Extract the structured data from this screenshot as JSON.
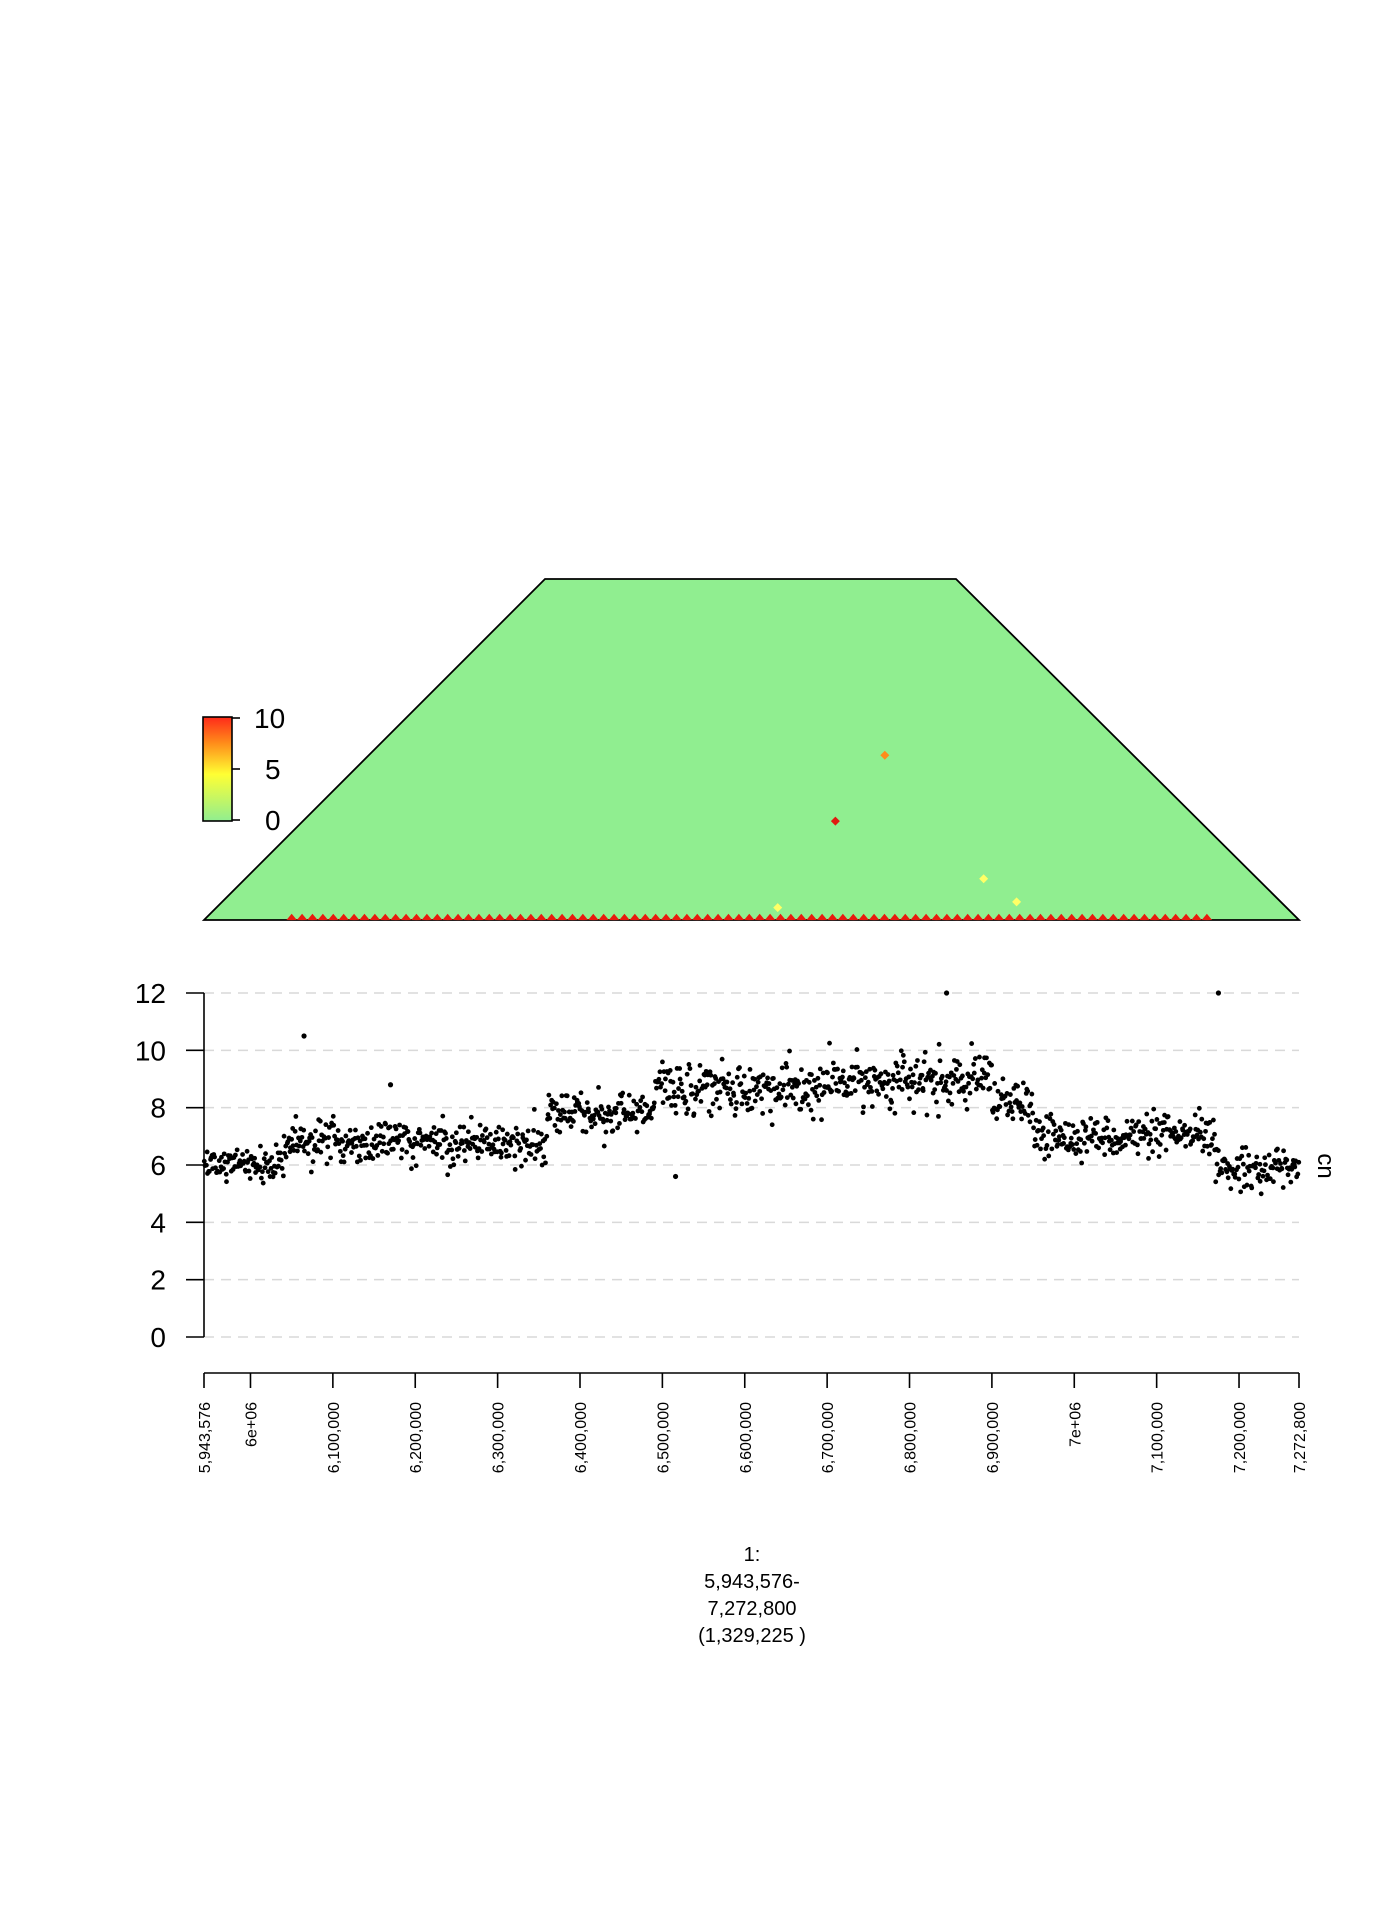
{
  "chart_data": [
    {
      "type": "heatmap",
      "title": "",
      "shape": "upper-triangle contact map, trapezoid",
      "background_color": "#90ee90",
      "outline_color": "#000000",
      "colorbar": {
        "ticks": [
          "10",
          "5",
          "0"
        ],
        "range": [
          0,
          10
        ],
        "colors": [
          "#90ee90",
          "#ffff33",
          "#ff8c1a",
          "#ff2a1a"
        ]
      },
      "diagonal_band": {
        "x_start": 6050000,
        "x_end": 7170000,
        "value": 10,
        "color": "#e81a0e"
      },
      "highlighted_cells": [
        {
          "x": 6710000,
          "distance": 120000,
          "value": 10,
          "color": "#e01a10"
        },
        {
          "x": 6770000,
          "distance": 200000,
          "value": 7,
          "color": "#ff8c1a"
        },
        {
          "x": 6890000,
          "distance": 50000,
          "value": 3,
          "color": "#ffff66"
        },
        {
          "x": 6930000,
          "distance": 22000,
          "value": 3,
          "color": "#ffff66"
        },
        {
          "x": 6640000,
          "distance": 15000,
          "value": 3,
          "color": "#ffff66"
        }
      ]
    },
    {
      "type": "scatter",
      "title": "",
      "xlabel_lines": [
        "1:",
        "5,943,576-",
        "7,272,800",
        "(1,329,225 )"
      ],
      "ylabel": "cn",
      "xlim": [
        5943576,
        7272800
      ],
      "ylim": [
        0,
        12
      ],
      "y_ticks": [
        "0",
        "2",
        "4",
        "6",
        "8",
        "10",
        "12"
      ],
      "x_ticks": [
        {
          "value": 5943576,
          "label": "5,943,576"
        },
        {
          "value": 6000000,
          "label": "6e+06"
        },
        {
          "value": 6100000,
          "label": "6,100,000"
        },
        {
          "value": 6200000,
          "label": "6,200,000"
        },
        {
          "value": 6300000,
          "label": "6,300,000"
        },
        {
          "value": 6400000,
          "label": "6,400,000"
        },
        {
          "value": 6500000,
          "label": "6,500,000"
        },
        {
          "value": 6600000,
          "label": "6,600,000"
        },
        {
          "value": 6700000,
          "label": "6,700,000"
        },
        {
          "value": 6800000,
          "label": "6,800,000"
        },
        {
          "value": 6900000,
          "label": "6,900,000"
        },
        {
          "value": 7000000,
          "label": "7e+06"
        },
        {
          "value": 7100000,
          "label": "7,100,000"
        },
        {
          "value": 7200000,
          "label": "7,200,000"
        },
        {
          "value": 7272800,
          "label": "7,272,800"
        }
      ],
      "grid": "horizontal dashed",
      "point_color": "#000000",
      "segments": [
        {
          "x_start": 5943576,
          "x_end": 6040000,
          "y_mean": 6.0,
          "y_sd": 0.28
        },
        {
          "x_start": 6040000,
          "x_end": 6150000,
          "y_mean": 6.8,
          "y_sd": 0.38
        },
        {
          "x_start": 6150000,
          "x_end": 6360000,
          "y_mean": 6.8,
          "y_sd": 0.38
        },
        {
          "x_start": 6360000,
          "x_end": 6490000,
          "y_mean": 7.8,
          "y_sd": 0.38
        },
        {
          "x_start": 6490000,
          "x_end": 6600000,
          "y_mean": 8.7,
          "y_sd": 0.45
        },
        {
          "x_start": 6600000,
          "x_end": 6700000,
          "y_mean": 8.6,
          "y_sd": 0.5
        },
        {
          "x_start": 6700000,
          "x_end": 6900000,
          "y_mean": 8.9,
          "y_sd": 0.45
        },
        {
          "x_start": 6900000,
          "x_end": 6950000,
          "y_mean": 8.1,
          "y_sd": 0.4
        },
        {
          "x_start": 6950000,
          "x_end": 7170000,
          "y_mean": 7.0,
          "y_sd": 0.35
        },
        {
          "x_start": 7170000,
          "x_end": 7272800,
          "y_mean": 5.9,
          "y_sd": 0.35
        }
      ],
      "outliers": [
        {
          "x": 6065000,
          "y": 10.5
        },
        {
          "x": 6516000,
          "y": 5.6
        },
        {
          "x": 6845000,
          "y": 12.0
        },
        {
          "x": 7175000,
          "y": 12.0
        },
        {
          "x": 6170000,
          "y": 8.8
        }
      ]
    }
  ]
}
